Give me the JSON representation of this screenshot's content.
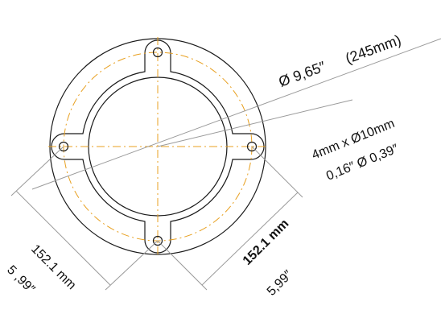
{
  "annotations": {
    "outer_diameter_in": "Ø 9,65″",
    "outer_diameter_mm": "(245mm)",
    "holes_metric": "4mm x Ø10mm",
    "holes_imperial": "0,16″  Ø 0,39″",
    "left_spacing_mm": "152.1 mm",
    "left_spacing_in": "5 ,99″",
    "right_spacing_mm": "152.1 mm",
    "right_spacing_in": "5,99″"
  },
  "colors": {
    "outline": "#1a1a1a",
    "centerline": "#e8a020",
    "dimension_line": "#9a9a9a"
  }
}
